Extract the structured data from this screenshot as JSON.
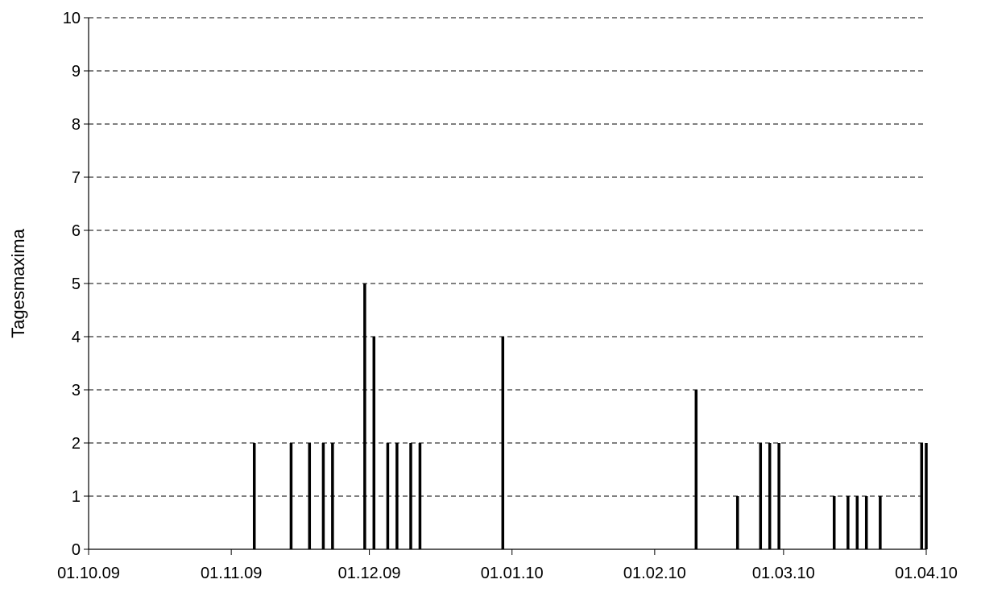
{
  "chart_data": {
    "type": "bar",
    "ylabel": "Tagesmaxima",
    "xlabel": "",
    "title": "",
    "ylim": [
      0,
      10
    ],
    "y_ticks": [
      "0",
      "1",
      "2",
      "3",
      "4",
      "5",
      "6",
      "7",
      "8",
      "9",
      "10"
    ],
    "x_range": [
      "2009-10-01",
      "2010-04-01"
    ],
    "x_ticks": [
      {
        "date": "2009-10-01",
        "label": "01.10.09"
      },
      {
        "date": "2009-11-01",
        "label": "01.11.09"
      },
      {
        "date": "2009-12-01",
        "label": "01.12.09"
      },
      {
        "date": "2010-01-01",
        "label": "01.01.10"
      },
      {
        "date": "2010-02-01",
        "label": "01.02.10"
      },
      {
        "date": "2010-03-01",
        "label": "01.03.10"
      },
      {
        "date": "2010-04-01",
        "label": "01.04.10"
      }
    ],
    "grid": "horizontal dashed",
    "bar_color": "#000000",
    "points": [
      {
        "x": "2009-11-06",
        "y": 2
      },
      {
        "x": "2009-11-14",
        "y": 2
      },
      {
        "x": "2009-11-18",
        "y": 2
      },
      {
        "x": "2009-11-21",
        "y": 2
      },
      {
        "x": "2009-11-23",
        "y": 2
      },
      {
        "x": "2009-11-30",
        "y": 5
      },
      {
        "x": "2009-12-02",
        "y": 4
      },
      {
        "x": "2009-12-05",
        "y": 2
      },
      {
        "x": "2009-12-07",
        "y": 2
      },
      {
        "x": "2009-12-10",
        "y": 2
      },
      {
        "x": "2009-12-12",
        "y": 2
      },
      {
        "x": "2009-12-30",
        "y": 4
      },
      {
        "x": "2010-02-10",
        "y": 3
      },
      {
        "x": "2010-02-19",
        "y": 1
      },
      {
        "x": "2010-02-24",
        "y": 2
      },
      {
        "x": "2010-02-26",
        "y": 2
      },
      {
        "x": "2010-02-28",
        "y": 2
      },
      {
        "x": "2010-03-12",
        "y": 1
      },
      {
        "x": "2010-03-15",
        "y": 1
      },
      {
        "x": "2010-03-17",
        "y": 1
      },
      {
        "x": "2010-03-19",
        "y": 1
      },
      {
        "x": "2010-03-22",
        "y": 1
      },
      {
        "x": "2010-03-31",
        "y": 2
      },
      {
        "x": "2010-04-01",
        "y": 2
      }
    ]
  }
}
